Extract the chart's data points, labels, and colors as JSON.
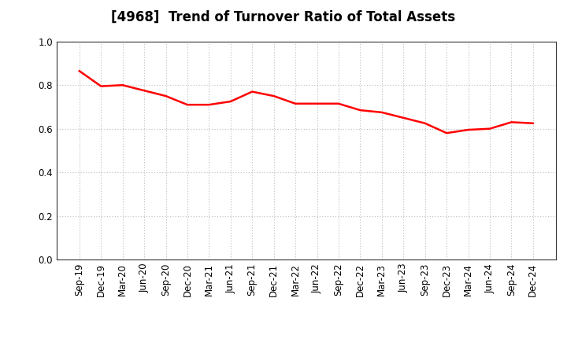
{
  "title": "[4968]  Trend of Turnover Ratio of Total Assets",
  "x_labels": [
    "Sep-19",
    "Dec-19",
    "Mar-20",
    "Jun-20",
    "Sep-20",
    "Dec-20",
    "Mar-21",
    "Jun-21",
    "Sep-21",
    "Dec-21",
    "Mar-22",
    "Jun-22",
    "Sep-22",
    "Dec-22",
    "Mar-23",
    "Jun-23",
    "Sep-23",
    "Dec-23",
    "Mar-24",
    "Jun-24",
    "Sep-24",
    "Dec-24"
  ],
  "y_values": [
    0.865,
    0.795,
    0.8,
    0.775,
    0.75,
    0.71,
    0.71,
    0.725,
    0.77,
    0.75,
    0.715,
    0.715,
    0.715,
    0.685,
    0.675,
    0.65,
    0.625,
    0.58,
    0.595,
    0.6,
    0.63,
    0.625
  ],
  "line_color": "#FF0000",
  "line_width": 1.8,
  "ylim": [
    0.0,
    1.0
  ],
  "yticks": [
    0.0,
    0.2,
    0.4,
    0.6,
    0.8,
    1.0
  ],
  "background_color": "#FFFFFF",
  "grid_color": "#BBBBBB",
  "title_fontsize": 12,
  "tick_fontsize": 8.5
}
